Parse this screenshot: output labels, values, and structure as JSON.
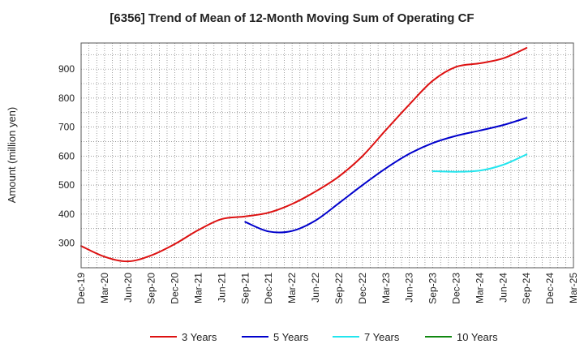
{
  "chart_data": {
    "type": "line",
    "title": "[6356]  Trend of Mean of 12-Month Moving Sum of Operating CF",
    "xlabel": "",
    "ylabel": "Amount (million yen)",
    "ylim": [
      215,
      990
    ],
    "yticks": [
      300,
      400,
      500,
      600,
      700,
      800,
      900
    ],
    "grid": true,
    "legend_position": "bottom",
    "x": [
      "Dec-19",
      "Mar-20",
      "Jun-20",
      "Sep-20",
      "Dec-20",
      "Mar-21",
      "Jun-21",
      "Sep-21",
      "Dec-21",
      "Mar-22",
      "Jun-22",
      "Sep-22",
      "Dec-22",
      "Mar-23",
      "Jun-23",
      "Sep-23",
      "Dec-23",
      "Mar-24",
      "Jun-24",
      "Sep-24",
      "Dec-24",
      "Mar-25"
    ],
    "series": [
      {
        "name": "3 Years",
        "color": "#dd1111",
        "values": [
          290,
          253,
          237,
          258,
          297,
          345,
          383,
          392,
          405,
          435,
          478,
          530,
          600,
          690,
          778,
          860,
          908,
          920,
          937,
          973,
          null,
          null
        ]
      },
      {
        "name": "5 Years",
        "color": "#0000cc",
        "values": [
          null,
          null,
          null,
          null,
          null,
          null,
          null,
          373,
          340,
          342,
          378,
          438,
          500,
          558,
          608,
          645,
          670,
          688,
          707,
          732,
          null,
          null
        ]
      },
      {
        "name": "7 Years",
        "color": "#22e5ee",
        "values": [
          null,
          null,
          null,
          null,
          null,
          null,
          null,
          null,
          null,
          null,
          null,
          null,
          null,
          null,
          null,
          548,
          546,
          550,
          570,
          606,
          null,
          null
        ]
      },
      {
        "name": "10 Years",
        "color": "#118811",
        "values": [
          null,
          null,
          null,
          null,
          null,
          null,
          null,
          null,
          null,
          null,
          null,
          null,
          null,
          null,
          null,
          null,
          null,
          null,
          null,
          null,
          null,
          null
        ]
      }
    ]
  }
}
